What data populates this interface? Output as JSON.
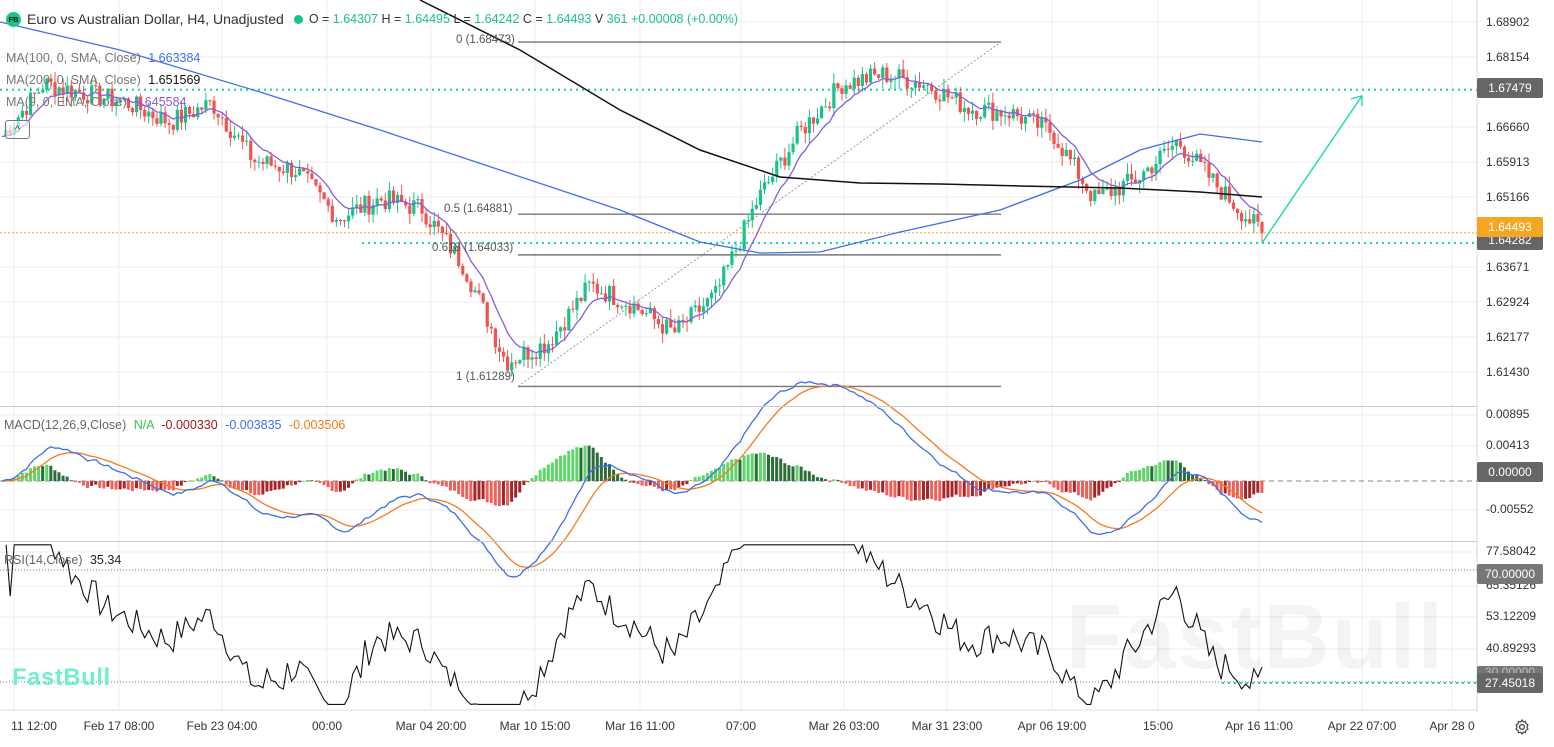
{
  "header": {
    "badge": "FB",
    "title": "Euro vs Australian Dollar, H4, Unadjusted",
    "ohlc": [
      {
        "key": "O =",
        "value": "1.64307"
      },
      {
        "key": "H =",
        "value": "1.64495"
      },
      {
        "key": "L =",
        "value": "1.64242"
      },
      {
        "key": "C =",
        "value": "1.64493"
      },
      {
        "key": "V",
        "value": "361"
      }
    ],
    "change": "+0.00008 (+0.00%)"
  },
  "indicators": {
    "ma100": {
      "label": "MA(100, 0, SMA, Close)",
      "value": "1.663384",
      "color": "#3f6fe8"
    },
    "ma200": {
      "label": "MA(200, 0, SMA, Close)",
      "value": "1.651569",
      "color": "#111111"
    },
    "ema9": {
      "label": "MA(9, 0, EMA, Close)",
      "value": "1.645584",
      "color": "#8a5cd6"
    },
    "macd": {
      "label": "MACD(12,26,9,Close)",
      "na": "N/A",
      "hist": "-0.000330",
      "macd": "-0.003835",
      "signal": "-0.003506"
    },
    "rsi": {
      "label": "RSI(14,Close)",
      "value": "35.34"
    }
  },
  "fibonacci": [
    {
      "label": "0 (1.68473)",
      "price": 1.68473
    },
    {
      "label": "0.5 (1.64881)",
      "price": 1.64881
    },
    {
      "label": "0.618 (1.64033)",
      "price": 1.64033
    },
    {
      "label": "1 (1.61289)",
      "price": 1.61289
    }
  ],
  "price_axis": {
    "ticks": [
      "1.68902",
      "1.68154",
      "1.66660",
      "1.65913",
      "1.65166",
      "1.63671",
      "1.62924",
      "1.62177",
      "1.61430"
    ],
    "tags": {
      "resistance": {
        "label": "1.67479",
        "color": "#666666"
      },
      "current": {
        "label": "1.64493",
        "color": "#f5a623"
      },
      "support": {
        "label": "1.64282",
        "color": "#666666"
      }
    }
  },
  "macd_axis": {
    "ticks": [
      "0.00895",
      "0.00413",
      "-0.00552"
    ],
    "zero_tag": "0.00000"
  },
  "rsi_axis": {
    "ticks": [
      "77.58042",
      "65.35126",
      "53.12209",
      "40.89293"
    ],
    "tags": {
      "upper": "70.00000",
      "lower": "27.45018",
      "hidden": "30.00000"
    }
  },
  "time_axis": {
    "labels": [
      "11 12:00",
      "Feb 17 08:00",
      "Feb 23 04:00",
      "00:00",
      "Mar 04 20:00",
      "Mar 10 15:00",
      "Mar 16 11:00",
      "07:00",
      "Mar 26 03:00",
      "Mar 31 23:00",
      "Apr 06 19:00",
      "15:00",
      "Apr 16 11:00",
      "Apr 22 07:00",
      "Apr 28 0"
    ]
  },
  "watermark": {
    "brand": "FastBull"
  },
  "colors": {
    "up": "#19c28c",
    "down": "#f05350",
    "accent": "#1cd6b0",
    "grid": "#ececef"
  },
  "chart_data": {
    "type": "candlestick",
    "title": "Euro vs Australian Dollar, H4, Unadjusted",
    "symbol": "EURAUD",
    "timeframe": "H4",
    "x_labels": [
      "11 12:00",
      "Feb 17 08:00",
      "Feb 23 04:00",
      "00:00",
      "Mar 04 20:00",
      "Mar 10 15:00",
      "Mar 16 11:00",
      "07:00",
      "Mar 26 03:00",
      "Mar 31 23:00",
      "Apr 06 19:00",
      "15:00",
      "Apr 16 11:00",
      "Apr 22 07:00",
      "Apr 28"
    ],
    "close_path_approx": [
      {
        "x": "Feb 11",
        "close": 1.665
      },
      {
        "x": "Feb 14",
        "close": 1.676
      },
      {
        "x": "Feb 17",
        "close": 1.674
      },
      {
        "x": "Feb 20",
        "close": 1.672
      },
      {
        "x": "Feb 23",
        "close": 1.668
      },
      {
        "x": "Feb 26",
        "close": 1.672
      },
      {
        "x": "Feb 28",
        "close": 1.66
      },
      {
        "x": "Mar 02",
        "close": 1.658
      },
      {
        "x": "Mar 04",
        "close": 1.648
      },
      {
        "x": "Mar 06",
        "close": 1.652
      },
      {
        "x": "Mar 07",
        "close": 1.65
      },
      {
        "x": "Mar 09",
        "close": 1.638
      },
      {
        "x": "Mar 10",
        "close": 1.618
      },
      {
        "x": "Mar 12",
        "close": 1.622
      },
      {
        "x": "Mar 14",
        "close": 1.634
      },
      {
        "x": "Mar 16",
        "close": 1.63
      },
      {
        "x": "Mar 18",
        "close": 1.624
      },
      {
        "x": "Mar 20",
        "close": 1.632
      },
      {
        "x": "Mar 22",
        "close": 1.652
      },
      {
        "x": "Mar 24",
        "close": 1.666
      },
      {
        "x": "Mar 26",
        "close": 1.676
      },
      {
        "x": "Mar 28",
        "close": 1.678
      },
      {
        "x": "Mar 31",
        "close": 1.676
      },
      {
        "x": "Apr 02",
        "close": 1.671
      },
      {
        "x": "Apr 04",
        "close": 1.67
      },
      {
        "x": "Apr 06",
        "close": 1.666
      },
      {
        "x": "Apr 08",
        "close": 1.652
      },
      {
        "x": "Apr 10",
        "close": 1.656
      },
      {
        "x": "Apr 12",
        "close": 1.664
      },
      {
        "x": "Apr 14",
        "close": 1.654
      },
      {
        "x": "Apr 16",
        "close": 1.64493
      }
    ],
    "ohlc_last": {
      "open": 1.64307,
      "high": 1.64495,
      "low": 1.64242,
      "close": 1.64493,
      "volume": 361
    },
    "overlays": {
      "MA100": 1.663384,
      "MA200": 1.651569,
      "EMA9": 1.645584,
      "horizontal_levels": [
        1.67479,
        1.64282
      ],
      "projection_arrow": {
        "from": 1.6428,
        "to": 1.6735
      }
    },
    "fibonacci": {
      "0": 1.68473,
      "0.5": 1.64881,
      "0.618": 1.64033,
      "1": 1.61289
    },
    "ylim": [
      1.6088,
      1.6935
    ],
    "macd": {
      "hist": -0.00033,
      "macd": -0.003835,
      "signal": -0.003506,
      "ylim": [
        -0.0085,
        0.0105
      ]
    },
    "rsi": {
      "value": 35.34,
      "levels": [
        70,
        30
      ],
      "ylim": [
        20,
        80
      ]
    }
  }
}
